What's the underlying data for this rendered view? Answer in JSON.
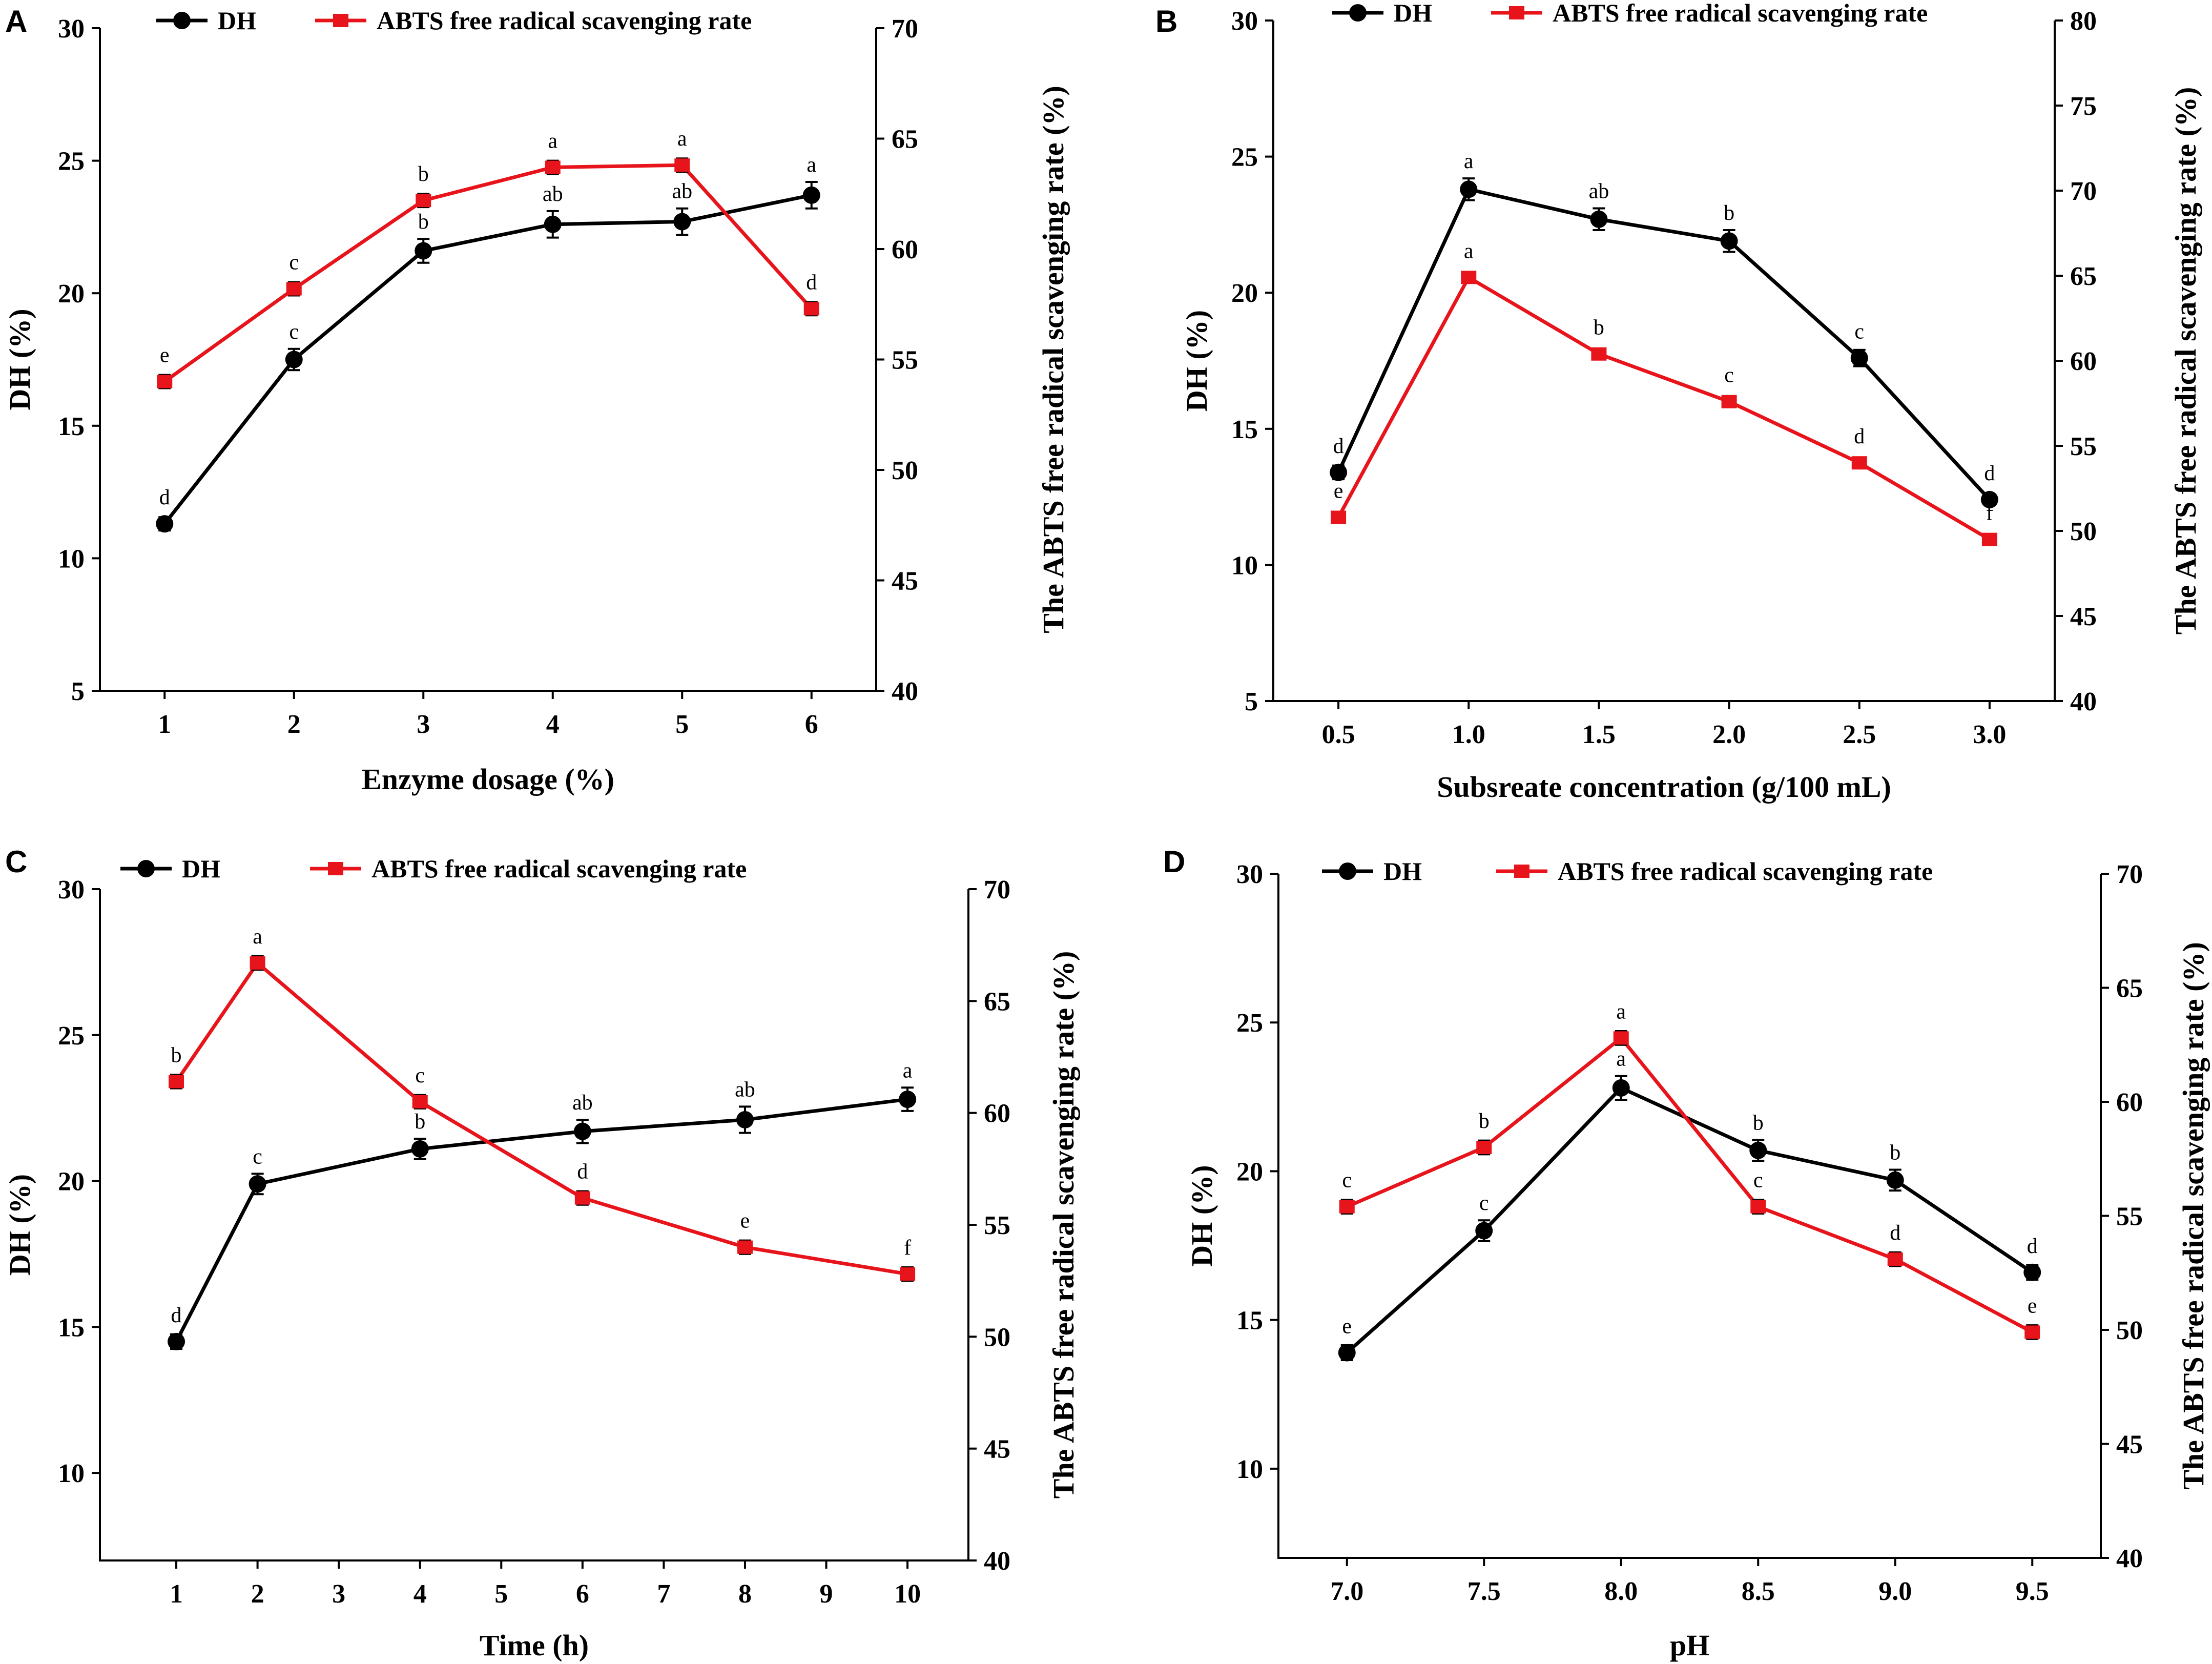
{
  "chart_data": [
    {
      "type": "line",
      "panel": "A",
      "xlabel": "Enzyme dosage (%)",
      "ylabel": "DH (%)",
      "y2label": "The ABTS free radical scavenging rate (%)",
      "xticks": [
        "1",
        "2",
        "3",
        "4",
        "5",
        "6"
      ],
      "x": [
        1,
        2,
        3,
        4,
        5,
        6
      ],
      "xlim": [
        0.5,
        6.5
      ],
      "ylim": [
        5,
        30
      ],
      "yticks": [
        5,
        10,
        15,
        20,
        25,
        30
      ],
      "y2lim": [
        40,
        70
      ],
      "y2ticks": [
        40,
        45,
        50,
        55,
        60,
        65,
        70
      ],
      "series": [
        {
          "name": "DH",
          "axis": "left",
          "color": "#000000",
          "marker": "circle",
          "values": [
            11.3,
            17.5,
            21.6,
            22.6,
            22.7,
            23.7
          ],
          "errors": [
            0.25,
            0.4,
            0.45,
            0.5,
            0.5,
            0.5
          ],
          "labels": [
            "d",
            "c",
            "b",
            "ab",
            "ab",
            "a"
          ]
        },
        {
          "name": "ABTS free radical scavenging rate",
          "axis": "right",
          "color": "#e8141b",
          "marker": "square",
          "values": [
            54.0,
            58.2,
            62.2,
            63.7,
            63.8,
            57.3
          ],
          "errors": [
            0.3,
            0.3,
            0.3,
            0.3,
            0.3,
            0.3
          ],
          "labels": [
            "e",
            "c",
            "b",
            "a",
            "a",
            "d"
          ]
        }
      ]
    },
    {
      "type": "line",
      "panel": "B",
      "xlabel": "Subsreate concentration (g/100 mL)",
      "ylabel": "DH (%)",
      "y2label": "The ABTS free radical scavenging rate (%)",
      "xticks": [
        "0.5",
        "1.0",
        "1.5",
        "2.0",
        "2.5",
        "3.0"
      ],
      "x": [
        0.5,
        1.0,
        1.5,
        2.0,
        2.5,
        3.0
      ],
      "xlim": [
        0.25,
        3.25
      ],
      "ylim": [
        5,
        30
      ],
      "yticks": [
        5,
        10,
        15,
        20,
        25,
        30
      ],
      "y2lim": [
        40,
        80
      ],
      "y2ticks": [
        40,
        45,
        50,
        55,
        60,
        65,
        70,
        75,
        80
      ],
      "series": [
        {
          "name": "DH",
          "axis": "left",
          "color": "#000000",
          "marker": "circle",
          "values": [
            13.4,
            23.8,
            22.7,
            21.9,
            17.6,
            12.4
          ],
          "errors": [
            0.25,
            0.4,
            0.4,
            0.4,
            0.3,
            0.15
          ],
          "labels": [
            "d",
            "a",
            "ab",
            "b",
            "c",
            "d"
          ]
        },
        {
          "name": "ABTS free radical scavenging rate",
          "axis": "right",
          "color": "#e8141b",
          "marker": "square",
          "values": [
            50.8,
            64.9,
            60.4,
            57.6,
            54.0,
            49.5
          ],
          "errors": [
            0.3,
            0.3,
            0.3,
            0.3,
            0.3,
            0.3
          ],
          "labels": [
            "e",
            "a",
            "b",
            "c",
            "d",
            "f"
          ]
        }
      ]
    },
    {
      "type": "line",
      "panel": "C",
      "xlabel": "Time (h)",
      "ylabel": "DH (%)",
      "y2label": "The ABTS free radical scavenging rate (%)",
      "xticks": [
        "1",
        "2",
        "3",
        "4",
        "5",
        "6",
        "7",
        "8",
        "9",
        "10"
      ],
      "x": [
        1,
        2,
        4,
        6,
        8,
        10
      ],
      "xlim": [
        0.06,
        10.75
      ],
      "ylim": [
        7,
        30
      ],
      "yticks": [
        10,
        15,
        20,
        25,
        30
      ],
      "y2lim": [
        40,
        70
      ],
      "y2ticks": [
        40,
        45,
        50,
        55,
        60,
        65,
        70
      ],
      "series": [
        {
          "name": "DH",
          "axis": "left",
          "color": "#000000",
          "marker": "circle",
          "values": [
            14.5,
            19.9,
            21.1,
            21.7,
            22.1,
            22.8
          ],
          "errors": [
            0.25,
            0.35,
            0.35,
            0.4,
            0.45,
            0.4
          ],
          "labels": [
            "d",
            "c",
            "b",
            "ab",
            "ab",
            "a"
          ]
        },
        {
          "name": "ABTS free radical scavenging rate",
          "axis": "right",
          "color": "#e8141b",
          "marker": "square",
          "values": [
            61.4,
            66.7,
            60.5,
            56.2,
            54.0,
            52.8
          ],
          "errors": [
            0.3,
            0.3,
            0.3,
            0.3,
            0.3,
            0.3
          ],
          "labels": [
            "b",
            "a",
            "c",
            "d",
            "e",
            "f"
          ]
        }
      ]
    },
    {
      "type": "line",
      "panel": "D",
      "xlabel": "pH",
      "ylabel": "DH (%)",
      "y2label": "The ABTS free radical scavenging rate (%)",
      "xticks": [
        "7.0",
        "7.5",
        "8.0",
        "8.5",
        "9.0",
        "9.5"
      ],
      "x": [
        7.0,
        7.5,
        8.0,
        8.5,
        9.0,
        9.5
      ],
      "xlim": [
        6.75,
        9.75
      ],
      "ylim": [
        7,
        30
      ],
      "yticks": [
        10,
        15,
        20,
        25,
        30
      ],
      "y2lim": [
        40,
        70
      ],
      "y2ticks": [
        40,
        45,
        50,
        55,
        60,
        65,
        70
      ],
      "series": [
        {
          "name": "DH",
          "axis": "left",
          "color": "#000000",
          "marker": "circle",
          "values": [
            13.9,
            18.0,
            22.8,
            20.7,
            19.7,
            16.6
          ],
          "errors": [
            0.25,
            0.35,
            0.4,
            0.35,
            0.35,
            0.25
          ],
          "labels": [
            "e",
            "c",
            "a",
            "b",
            "b",
            "d"
          ]
        },
        {
          "name": "ABTS free radical scavenging rate",
          "axis": "right",
          "color": "#e8141b",
          "marker": "square",
          "values": [
            55.4,
            58.0,
            62.8,
            55.4,
            53.1,
            49.9
          ],
          "errors": [
            0.3,
            0.3,
            0.3,
            0.3,
            0.3,
            0.3
          ],
          "labels": [
            "c",
            "b",
            "a",
            "c",
            "d",
            "e"
          ]
        }
      ]
    }
  ]
}
